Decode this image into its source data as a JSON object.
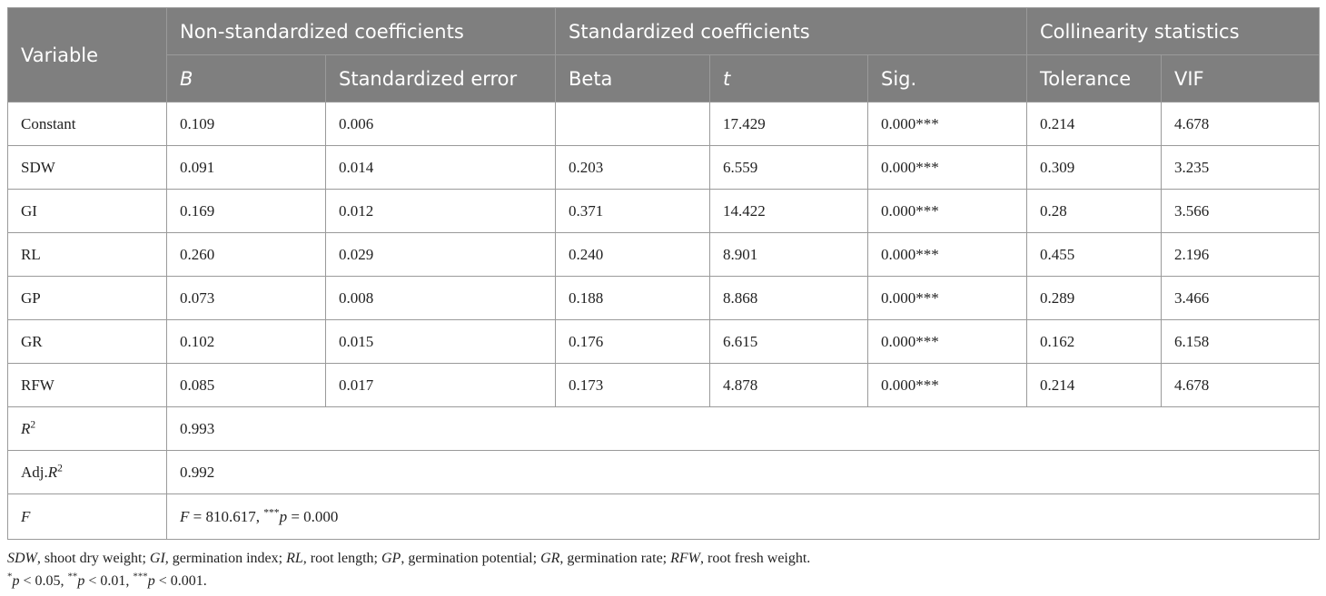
{
  "table": {
    "header": {
      "variable": "Variable",
      "groups": [
        {
          "text": "Non-standardized coefficients",
          "span": 2
        },
        {
          "text": "Standardized coefficients",
          "span": 3
        },
        {
          "text": "Collinearity statistics",
          "span": 2
        }
      ],
      "columns": [
        [
          {
            "text": "B",
            "style": "italic"
          }
        ],
        "Standardized error",
        "Beta",
        [
          {
            "text": "t",
            "style": "italic"
          }
        ],
        "Sig.",
        "Tolerance",
        "VIF"
      ]
    },
    "rows": [
      {
        "label": "Constant",
        "cells": [
          "0.109",
          "0.006",
          null,
          "17.429",
          "0.000***",
          "0.214",
          "4.678"
        ]
      },
      {
        "label": "SDW",
        "cells": [
          "0.091",
          "0.014",
          "0.203",
          "6.559",
          "0.000***",
          "0.309",
          "3.235"
        ]
      },
      {
        "label": "GI",
        "cells": [
          "0.169",
          "0.012",
          "0.371",
          "14.422",
          "0.000***",
          "0.28",
          "3.566"
        ]
      },
      {
        "label": "RL",
        "cells": [
          "0.260",
          "0.029",
          "0.240",
          "8.901",
          "0.000***",
          "0.455",
          "2.196"
        ]
      },
      {
        "label": "GP",
        "cells": [
          "0.073",
          "0.008",
          "0.188",
          "8.868",
          "0.000***",
          "0.289",
          "3.466"
        ]
      },
      {
        "label": "GR",
        "cells": [
          "0.102",
          "0.015",
          "0.176",
          "6.615",
          "0.000***",
          "0.162",
          "6.158"
        ]
      },
      {
        "label": "RFW",
        "cells": [
          "0.085",
          "0.017",
          "0.173",
          "4.878",
          "0.000***",
          "0.214",
          "4.678"
        ]
      },
      {
        "label": [
          {
            "text": "R",
            "style": "italic"
          },
          {
            "text": "2",
            "style": "sup"
          }
        ],
        "value": "0.993"
      },
      {
        "label": [
          {
            "text": "Adj.",
            "style": "normal"
          },
          {
            "text": "R",
            "style": "italic"
          },
          {
            "text": "2",
            "style": "sup"
          }
        ],
        "value": "0.992"
      },
      {
        "label": [
          {
            "text": "F",
            "style": "italic"
          }
        ],
        "value": [
          {
            "text": "F",
            "style": "italic"
          },
          {
            "text": " = 810.617, ",
            "style": "normal"
          },
          {
            "text": "***",
            "style": "sup"
          },
          {
            "text": "p",
            "style": "italic"
          },
          {
            "text": " = 0.000",
            "style": "normal"
          }
        ]
      }
    ]
  },
  "footnotes": [
    [
      {
        "text": "SDW",
        "style": "italic"
      },
      {
        "text": ", shoot dry weight; ",
        "style": "normal"
      },
      {
        "text": "GI",
        "style": "italic"
      },
      {
        "text": ", germination index; ",
        "style": "normal"
      },
      {
        "text": "RL",
        "style": "italic"
      },
      {
        "text": ", root length; ",
        "style": "normal"
      },
      {
        "text": "GP",
        "style": "italic"
      },
      {
        "text": ", germination potential; ",
        "style": "normal"
      },
      {
        "text": "GR",
        "style": "italic"
      },
      {
        "text": ", germination rate; ",
        "style": "normal"
      },
      {
        "text": "RFW",
        "style": "italic"
      },
      {
        "text": ", root fresh weight.",
        "style": "normal"
      }
    ],
    [
      {
        "text": "*",
        "style": "sup"
      },
      {
        "text": "p",
        "style": "italic"
      },
      {
        "text": " < 0.05, ",
        "style": "normal"
      },
      {
        "text": "**",
        "style": "sup"
      },
      {
        "text": "p",
        "style": "italic"
      },
      {
        "text": " < 0.01, ",
        "style": "normal"
      },
      {
        "text": "***",
        "style": "sup"
      },
      {
        "text": "p",
        "style": "italic"
      },
      {
        "text": " < 0.001.",
        "style": "normal"
      }
    ]
  ]
}
